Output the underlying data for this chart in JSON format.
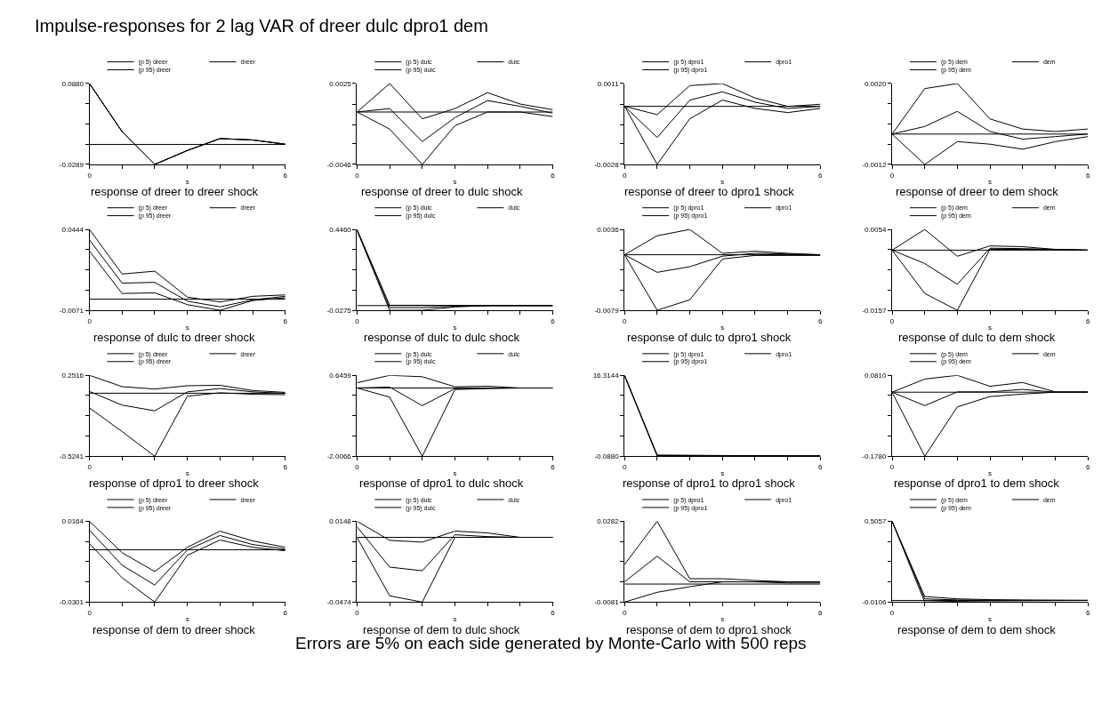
{
  "chart_data": [
    {
      "type": "other",
      "title": "Impulse-responses for 2 lag VAR of dreer dulc dpro1 dem",
      "annotations": [
        "Errors are 5% on each side generated by Monte-Carlo with 500 reps"
      ]
    },
    {
      "type": "line",
      "title": "response of dreer to dreer shock",
      "xlabel": "s",
      "legend": "top",
      "x": [
        0,
        1,
        2,
        3,
        4,
        5,
        6
      ],
      "xlim": [
        0,
        6
      ],
      "xticks": [
        0,
        {
          "value": 1,
          "label": null
        },
        {
          "value": 2,
          "label": null
        },
        {
          "value": 3,
          "label": null
        },
        {
          "value": 4,
          "label": null
        },
        {
          "value": 5,
          "label": null
        },
        6
      ],
      "ylim": [
        -0.0289,
        0.088
      ],
      "yticks": [
        -0.0289,
        {
          "value": 0.0003,
          "label": null
        },
        {
          "value": 0.0296,
          "label": null
        },
        {
          "value": 0.0588,
          "label": null
        },
        {
          "value": 0.088,
          "label": "0.0880"
        }
      ],
      "ref_lines": [
        {
          "axis": "y",
          "value": 0,
          "color": "#000000"
        }
      ],
      "series": [
        {
          "name": "(p 5) dreer",
          "color": "#000000",
          "values": [
            0.088,
            0.0184,
            -0.0289,
            -0.0088,
            0.0084,
            0.0064,
            0.0003
          ]
        },
        {
          "name": "dreer",
          "color": "#000000",
          "values": [
            0.088,
            0.0184,
            -0.0289,
            -0.0088,
            0.0084,
            0.0064,
            0.0003
          ]
        },
        {
          "name": "(p 95) dreer",
          "color": "#000000",
          "values": [
            0.088,
            0.0184,
            -0.0289,
            -0.0088,
            0.0084,
            0.0064,
            0.0003
          ]
        }
      ]
    },
    {
      "type": "line",
      "title": "response of dreer to dulc shock",
      "xlabel": "s",
      "legend": "top",
      "x": [
        0,
        1,
        2,
        3,
        4,
        5,
        6
      ],
      "xlim": [
        0,
        6
      ],
      "xticks": [
        0,
        {
          "value": 1,
          "label": null
        },
        {
          "value": 2,
          "label": null
        },
        {
          "value": 3,
          "label": null
        },
        {
          "value": 4,
          "label": null
        },
        {
          "value": 5,
          "label": null
        },
        6
      ],
      "ylim": [
        -0.0046,
        0.0025
      ],
      "yticks": [
        -0.0046,
        {
          "value": -0.0028,
          "label": null
        },
        {
          "value": -0.0011,
          "label": null
        },
        {
          "value": 0.0007,
          "label": null
        },
        0.0025
      ],
      "ref_lines": [
        {
          "axis": "y",
          "value": 0,
          "color": "#000000"
        }
      ],
      "series": [
        {
          "name": "(p 5) dulc",
          "color": "#000000",
          "values": [
            0,
            -0.0015,
            -0.0046,
            -0.0012,
            0.0,
            0.0,
            -0.0004
          ]
        },
        {
          "name": "dulc",
          "color": "#000000",
          "values": [
            0,
            0.0003,
            -0.0026,
            -0.0005,
            0.001,
            0.0005,
            -0.0001
          ]
        },
        {
          "name": "(p 95) dulc",
          "color": "#000000",
          "values": [
            0,
            0.0025,
            -0.0006,
            0.0003,
            0.0017,
            0.0007,
            0.0002
          ]
        }
      ]
    },
    {
      "type": "line",
      "title": "response of dreer to dpro1 shock",
      "xlabel": "s",
      "legend": "top",
      "x": [
        0,
        1,
        2,
        3,
        4,
        5,
        6
      ],
      "xlim": [
        0,
        6
      ],
      "xticks": [
        0,
        {
          "value": 1,
          "label": null
        },
        {
          "value": 2,
          "label": null
        },
        {
          "value": 3,
          "label": null
        },
        {
          "value": 4,
          "label": null
        },
        {
          "value": 5,
          "label": null
        },
        6
      ],
      "ylim": [
        -0.0028,
        0.0011
      ],
      "yticks": [
        -0.0028,
        {
          "value": -0.0018,
          "label": null
        },
        {
          "value": -0.0009,
          "label": null
        },
        {
          "value": 0.0001,
          "label": null
        },
        0.0011
      ],
      "ref_lines": [
        {
          "axis": "y",
          "value": 0,
          "color": "#000000"
        }
      ],
      "series": [
        {
          "name": "(p 5) dpro1",
          "color": "#000000",
          "values": [
            0,
            -0.0028,
            -0.0006,
            0.0003,
            -0.0001,
            -0.0003,
            -0.0001
          ]
        },
        {
          "name": "dpro1",
          "color": "#000000",
          "values": [
            0,
            -0.0015,
            0.0003,
            0.0007,
            0.0002,
            -0.0001,
            0.0
          ]
        },
        {
          "name": "(p 95) dpro1",
          "color": "#000000",
          "values": [
            0,
            -0.0004,
            0.001,
            0.0011,
            0.0004,
            0.0,
            0.0001
          ]
        }
      ]
    },
    {
      "type": "line",
      "title": "response of dreer to dem shock",
      "xlabel": "s",
      "legend": "top",
      "x": [
        0,
        1,
        2,
        3,
        4,
        5,
        6
      ],
      "xlim": [
        0,
        6
      ],
      "xticks": [
        0,
        {
          "value": 1,
          "label": null
        },
        {
          "value": 2,
          "label": null
        },
        {
          "value": 3,
          "label": null
        },
        {
          "value": 4,
          "label": null
        },
        {
          "value": 5,
          "label": null
        },
        6
      ],
      "ylim": [
        -0.0012,
        0.002
      ],
      "yticks": [
        -0.0012,
        {
          "value": -0.0004,
          "label": null
        },
        {
          "value": 0.0004,
          "label": null
        },
        {
          "value": 0.0012,
          "label": null
        },
        {
          "value": 0.002,
          "label": "0.0020"
        }
      ],
      "ref_lines": [
        {
          "axis": "y",
          "value": 0,
          "color": "#000000"
        }
      ],
      "series": [
        {
          "name": "(p 5) dem",
          "color": "#000000",
          "values": [
            0,
            -0.0012,
            -0.0003,
            -0.0004,
            -0.0006,
            -0.0003,
            -0.0001
          ]
        },
        {
          "name": "dem",
          "color": "#000000",
          "values": [
            0,
            0.0003,
            0.0009,
            0.0001,
            -0.0002,
            -0.0001,
            0.0
          ]
        },
        {
          "name": "(p 95) dem",
          "color": "#000000",
          "values": [
            0,
            0.0018,
            0.002,
            0.0006,
            0.0002,
            0.0001,
            0.0002
          ]
        }
      ]
    },
    {
      "type": "line",
      "title": "response of dulc to dreer shock",
      "xlabel": "s",
      "legend": "top",
      "x": [
        0,
        1,
        2,
        3,
        4,
        5,
        6
      ],
      "xlim": [
        0,
        6
      ],
      "xticks": [
        0,
        {
          "value": 1,
          "label": null
        },
        {
          "value": 2,
          "label": null
        },
        {
          "value": 3,
          "label": null
        },
        {
          "value": 4,
          "label": null
        },
        {
          "value": 5,
          "label": null
        },
        6
      ],
      "ylim": [
        -0.0071,
        0.0444
      ],
      "yticks": [
        -0.0071,
        {
          "value": 0.0058,
          "label": null
        },
        {
          "value": 0.0187,
          "label": null
        },
        {
          "value": 0.0315,
          "label": null
        },
        0.0444
      ],
      "ref_lines": [
        {
          "axis": "y",
          "value": 0,
          "color": "#000000"
        }
      ],
      "series": [
        {
          "name": "(p 5) dreer",
          "color": "#000000",
          "values": [
            0.0306,
            0.0036,
            0.004,
            -0.0035,
            -0.0071,
            -0.0009,
            0.0009
          ]
        },
        {
          "name": "dreer",
          "color": "#000000",
          "values": [
            0.0377,
            0.0102,
            0.0107,
            -0.0013,
            -0.0049,
            -0.0004,
            0.0018
          ]
        },
        {
          "name": "(p 95) dreer",
          "color": "#000000",
          "values": [
            0.0444,
            0.016,
            0.0178,
            0.0013,
            -0.0018,
            0.0018,
            0.0027
          ]
        }
      ]
    },
    {
      "type": "line",
      "title": "response of dulc to dulc shock",
      "xlabel": "s",
      "legend": "top",
      "x": [
        0,
        1,
        2,
        3,
        4,
        5,
        6
      ],
      "xlim": [
        0,
        6
      ],
      "xticks": [
        0,
        {
          "value": 1,
          "label": null
        },
        {
          "value": 2,
          "label": null
        },
        {
          "value": 3,
          "label": null
        },
        {
          "value": 4,
          "label": null
        },
        {
          "value": 5,
          "label": null
        },
        6
      ],
      "ylim": [
        -0.0275,
        0.446
      ],
      "yticks": [
        -0.0275,
        {
          "value": 0.0909,
          "label": null
        },
        {
          "value": 0.2093,
          "label": null
        },
        {
          "value": 0.3276,
          "label": null
        },
        {
          "value": 0.446,
          "label": "0.4460"
        }
      ],
      "ref_lines": [
        {
          "axis": "y",
          "value": 0,
          "color": "#000000"
        }
      ],
      "series": [
        {
          "name": "(p 5) dulc",
          "color": "#000000",
          "values": [
            0.44,
            -0.0275,
            -0.0275,
            -0.008,
            0,
            0,
            0
          ]
        },
        {
          "name": "dulc",
          "color": "#000000",
          "values": [
            0.443,
            -0.012,
            -0.012,
            -0.004,
            0,
            0,
            0
          ]
        },
        {
          "name": "(p 95) dulc",
          "color": "#000000",
          "values": [
            0.446,
            0.002,
            0.002,
            0.001,
            0,
            0,
            0
          ]
        }
      ]
    },
    {
      "type": "line",
      "title": "response of dulc to dpro1 shock",
      "xlabel": "s",
      "legend": "top",
      "x": [
        0,
        1,
        2,
        3,
        4,
        5,
        6
      ],
      "xlim": [
        0,
        6
      ],
      "xticks": [
        0,
        {
          "value": 1,
          "label": null
        },
        {
          "value": 2,
          "label": null
        },
        {
          "value": 3,
          "label": null
        },
        {
          "value": 4,
          "label": null
        },
        {
          "value": 5,
          "label": null
        },
        6
      ],
      "ylim": [
        -0.0079,
        0.0036
      ],
      "yticks": [
        -0.0079,
        {
          "value": -0.005,
          "label": null
        },
        {
          "value": -0.0022,
          "label": null
        },
        {
          "value": 0.0007,
          "label": null
        },
        0.0036
      ],
      "ref_lines": [
        {
          "axis": "y",
          "value": 0,
          "color": "#000000"
        }
      ],
      "series": [
        {
          "name": "(p 5) dpro1",
          "color": "#000000",
          "values": [
            0,
            -0.0079,
            -0.0064,
            -0.0006,
            -0.0001,
            -0.0001,
            -0.0001
          ]
        },
        {
          "name": "dpro1",
          "color": "#000000",
          "values": [
            0,
            -0.0025,
            -0.0017,
            -0.0002,
            0.0002,
            0.0001,
            0
          ]
        },
        {
          "name": "(p 95) dpro1",
          "color": "#000000",
          "values": [
            0,
            0.0027,
            0.0036,
            0.0002,
            0.0005,
            0.0002,
            0
          ]
        }
      ]
    },
    {
      "type": "line",
      "title": "response of dulc to dem shock",
      "xlabel": "s",
      "legend": "top",
      "x": [
        0,
        1,
        2,
        3,
        4,
        5,
        6
      ],
      "xlim": [
        0,
        6
      ],
      "xticks": [
        0,
        {
          "value": 1,
          "label": null
        },
        {
          "value": 2,
          "label": null
        },
        {
          "value": 3,
          "label": null
        },
        {
          "value": 4,
          "label": null
        },
        {
          "value": 5,
          "label": null
        },
        6
      ],
      "ylim": [
        -0.0157,
        0.0054
      ],
      "yticks": [
        -0.0157,
        {
          "value": -0.0104,
          "label": null
        },
        {
          "value": -0.0052,
          "label": null
        },
        {
          "value": 0.0001,
          "label": null
        },
        0.0054
      ],
      "ref_lines": [
        {
          "axis": "y",
          "value": 0,
          "color": "#000000"
        }
      ],
      "series": [
        {
          "name": "(p 5) dem",
          "color": "#000000",
          "values": [
            0,
            -0.0113,
            -0.0157,
            0.0002,
            0.0002,
            0.0002,
            0
          ]
        },
        {
          "name": "dem",
          "color": "#000000",
          "values": [
            0,
            -0.0035,
            -0.0089,
            0.0005,
            0.0004,
            0.0002,
            0
          ]
        },
        {
          "name": "(p 95) dem",
          "color": "#000000",
          "values": [
            0,
            0.0054,
            -0.0016,
            0.0011,
            0.0009,
            0.0002,
            0
          ]
        }
      ]
    },
    {
      "type": "line",
      "title": "response of dpro1 to dreer shock",
      "xlabel": "s",
      "legend": "top",
      "x": [
        0,
        1,
        2,
        3,
        4,
        5,
        6
      ],
      "xlim": [
        0,
        6
      ],
      "xticks": [
        0,
        {
          "value": 1,
          "label": null
        },
        {
          "value": 2,
          "label": null
        },
        {
          "value": 3,
          "label": null
        },
        {
          "value": 4,
          "label": null
        },
        {
          "value": 5,
          "label": null
        },
        6
      ],
      "ylim": [
        -0.5241,
        0.2516
      ],
      "yticks": [
        -0.5241,
        {
          "value": -0.3302,
          "label": null
        },
        {
          "value": -0.1363,
          "label": null
        },
        {
          "value": 0.0577,
          "label": null
        },
        0.2516
      ],
      "ref_lines": [
        {
          "axis": "y",
          "value": 0.08,
          "color": "#000000"
        }
      ],
      "series": [
        {
          "name": "(p 5) dreer",
          "color": "#000000",
          "values": [
            -0.061,
            -0.288,
            -0.5241,
            0.052,
            0.084,
            0.07,
            0.066
          ]
        },
        {
          "name": "dreer",
          "color": "#000000",
          "values": [
            0.097,
            -0.034,
            -0.089,
            0.093,
            0.125,
            0.093,
            0.079
          ]
        },
        {
          "name": "(p 95) dreer",
          "color": "#000000",
          "values": [
            0.2516,
            0.143,
            0.12,
            0.152,
            0.156,
            0.106,
            0.088
          ]
        }
      ]
    },
    {
      "type": "line",
      "title": "response of dpro1 to dulc shock",
      "xlabel": "s",
      "legend": "top",
      "x": [
        0,
        1,
        2,
        3,
        4,
        5,
        6
      ],
      "xlim": [
        0,
        6
      ],
      "xticks": [
        0,
        {
          "value": 1,
          "label": null
        },
        {
          "value": 2,
          "label": null
        },
        {
          "value": 3,
          "label": null
        },
        {
          "value": 4,
          "label": null
        },
        {
          "value": 5,
          "label": null
        },
        6
      ],
      "ylim": [
        -2.0066,
        0.6459
      ],
      "yticks": [
        -2.0066,
        {
          "value": -1.3435,
          "label": null
        },
        {
          "value": -0.6803,
          "label": null
        },
        {
          "value": -0.0172,
          "label": null
        },
        0.6459
      ],
      "ref_lines": [
        {
          "axis": "y",
          "value": 0.23,
          "color": "#000000"
        }
      ],
      "series": [
        {
          "name": "(p 5) dulc",
          "color": "#000000",
          "values": [
            0.23,
            -0.07,
            -2.0066,
            0.18,
            0.21,
            0.23,
            0.23
          ]
        },
        {
          "name": "dulc",
          "color": "#000000",
          "values": [
            0.23,
            0.26,
            -0.35,
            0.21,
            0.23,
            0.23,
            0.23
          ]
        },
        {
          "name": "(p 95) dulc",
          "color": "#000000",
          "values": [
            0.4,
            0.6459,
            0.6,
            0.27,
            0.29,
            0.23,
            0.23
          ]
        }
      ]
    },
    {
      "type": "line",
      "title": "response of dpro1 to dpro1 shock",
      "xlabel": "s",
      "legend": "top",
      "x": [
        0,
        1,
        2,
        3,
        4,
        5,
        6
      ],
      "xlim": [
        0,
        6
      ],
      "xticks": [
        0,
        {
          "value": 1,
          "label": null
        },
        {
          "value": 2,
          "label": null
        },
        {
          "value": 3,
          "label": null
        },
        {
          "value": 4,
          "label": null
        },
        {
          "value": 5,
          "label": null
        },
        6
      ],
      "ylim": [
        -0.088,
        16.3144
      ],
      "yticks": [
        {
          "value": -0.088,
          "label": "-0.0880"
        },
        {
          "value": 4.0126,
          "label": null
        },
        {
          "value": 8.1132,
          "label": null
        },
        {
          "value": 12.2138,
          "label": null
        },
        16.3144
      ],
      "series": [
        {
          "name": "(p 5) dpro1",
          "color": "#000000",
          "values": [
            16.2,
            -0.05,
            -0.07,
            -0.08,
            -0.088,
            -0.088,
            -0.088
          ]
        },
        {
          "name": "dpro1",
          "color": "#000000",
          "values": [
            16.3144,
            0.05,
            0.03,
            0.01,
            0,
            0,
            0
          ]
        },
        {
          "name": "(p 95) dpro1",
          "color": "#000000",
          "values": [
            16.3144,
            0.15,
            0.1,
            0.05,
            0.03,
            0.02,
            0.01
          ]
        }
      ]
    },
    {
      "type": "line",
      "title": "response of dpro1 to dem shock",
      "xlabel": "s",
      "legend": "top",
      "x": [
        0,
        1,
        2,
        3,
        4,
        5,
        6
      ],
      "xlim": [
        0,
        6
      ],
      "xticks": [
        0,
        {
          "value": 1,
          "label": null
        },
        {
          "value": 2,
          "label": null
        },
        {
          "value": 3,
          "label": null
        },
        {
          "value": 4,
          "label": null
        },
        {
          "value": 5,
          "label": null
        },
        6
      ],
      "ylim": [
        -0.178,
        0.081
      ],
      "yticks": [
        {
          "value": -0.178,
          "label": "-0.1780"
        },
        {
          "value": -0.1133,
          "label": null
        },
        {
          "value": -0.0485,
          "label": null
        },
        {
          "value": 0.0163,
          "label": null
        },
        {
          "value": 0.081,
          "label": "0.0810"
        }
      ],
      "ref_lines": [
        {
          "axis": "y",
          "value": 0.027,
          "color": "#000000"
        }
      ],
      "series": [
        {
          "name": "(p 5) dem",
          "color": "#000000",
          "values": [
            0.027,
            -0.178,
            -0.02,
            0.013,
            0.021,
            0.027,
            0.027
          ]
        },
        {
          "name": "dem",
          "color": "#000000",
          "values": [
            0.027,
            -0.016,
            0.028,
            0.028,
            0.036,
            0.027,
            0.027
          ]
        },
        {
          "name": "(p 95) dem",
          "color": "#000000",
          "values": [
            0.027,
            0.069,
            0.081,
            0.046,
            0.058,
            0.028,
            0.028
          ]
        }
      ]
    },
    {
      "type": "line",
      "title": "response of dem to dreer shock",
      "xlabel": "s",
      "legend": "top",
      "x": [
        0,
        1,
        2,
        3,
        4,
        5,
        6
      ],
      "xlim": [
        0,
        6
      ],
      "xticks": [
        0,
        {
          "value": 1,
          "label": null
        },
        {
          "value": 2,
          "label": null
        },
        {
          "value": 3,
          "label": null
        },
        {
          "value": 4,
          "label": null
        },
        {
          "value": 5,
          "label": null
        },
        6
      ],
      "ylim": [
        -0.0301,
        0.0164
      ],
      "yticks": [
        -0.0301,
        {
          "value": -0.0185,
          "label": null
        },
        {
          "value": -0.0068,
          "label": null
        },
        {
          "value": 0.0048,
          "label": null
        },
        0.0164
      ],
      "ref_lines": [
        {
          "axis": "y",
          "value": 0,
          "color": "#000000"
        }
      ],
      "series": [
        {
          "name": "(p 5) dreer",
          "color": "#000000",
          "values": [
            0.0035,
            -0.0161,
            -0.0301,
            -0.0032,
            0.0056,
            0.0014,
            -0.0006
          ]
        },
        {
          "name": "dreer",
          "color": "#000000",
          "values": [
            0.0113,
            -0.0089,
            -0.0203,
            -0.0001,
            0.0082,
            0.003,
            0.0004
          ]
        },
        {
          "name": "(p 95) dreer",
          "color": "#000000",
          "values": [
            0.0164,
            -0.0017,
            -0.0125,
            0.0014,
            0.0107,
            0.0051,
            0.0014
          ]
        }
      ]
    },
    {
      "type": "line",
      "title": "response of dem to dulc shock",
      "xlabel": "s",
      "legend": "top",
      "x": [
        0,
        1,
        2,
        3,
        4,
        5,
        6
      ],
      "xlim": [
        0,
        6
      ],
      "xticks": [
        0,
        {
          "value": 1,
          "label": null
        },
        {
          "value": 2,
          "label": null
        },
        {
          "value": 3,
          "label": null
        },
        {
          "value": 4,
          "label": null
        },
        {
          "value": 5,
          "label": null
        },
        6
      ],
      "ylim": [
        -0.0474,
        0.0148
      ],
      "yticks": [
        -0.0474,
        {
          "value": -0.0319,
          "label": null
        },
        {
          "value": -0.0163,
          "label": null
        },
        {
          "value": -0.0008,
          "label": null
        },
        0.0148
      ],
      "ref_lines": [
        {
          "axis": "y",
          "value": 0.0024,
          "color": "#000000"
        }
      ],
      "series": [
        {
          "name": "(p 5) dulc",
          "color": "#000000",
          "values": [
            0.0024,
            -0.0426,
            -0.0474,
            0.0024,
            0.0024,
            0.0024,
            0.0024
          ]
        },
        {
          "name": "dulc",
          "color": "#000000",
          "values": [
            0.0106,
            -0.0205,
            -0.0233,
            0.0044,
            0.003,
            0.0024,
            0.0024
          ]
        },
        {
          "name": "(p 95) dulc",
          "color": "#000000",
          "values": [
            0.0148,
            0.0001,
            -0.0013,
            0.0072,
            0.0058,
            0.0024,
            0.0024
          ]
        }
      ]
    },
    {
      "type": "line",
      "title": "response of dem to dpro1 shock",
      "xlabel": "s",
      "legend": "top",
      "x": [
        0,
        1,
        2,
        3,
        4,
        5,
        6
      ],
      "xlim": [
        0,
        6
      ],
      "xticks": [
        0,
        {
          "value": 1,
          "label": null
        },
        {
          "value": 2,
          "label": null
        },
        {
          "value": 3,
          "label": null
        },
        {
          "value": 4,
          "label": null
        },
        {
          "value": 5,
          "label": null
        },
        6
      ],
      "ylim": [
        -0.0081,
        0.0282
      ],
      "yticks": [
        -0.0081,
        {
          "value": 0.001,
          "label": null
        },
        {
          "value": 0.0101,
          "label": null
        },
        {
          "value": 0.0191,
          "label": null
        },
        0.0282
      ],
      "ref_lines": [
        {
          "axis": "y",
          "value": 0,
          "color": "#000000"
        }
      ],
      "series": [
        {
          "name": "(p 5) dpro1",
          "color": "#000000",
          "values": [
            -0.0081,
            -0.0037,
            -0.0012,
            0.001,
            0.001,
            0.0005,
            0.0005
          ]
        },
        {
          "name": "dpro1",
          "color": "#000000",
          "values": [
            0.001,
            0.0125,
            0.001,
            0.001,
            0.001,
            0.001,
            0.001
          ]
        },
        {
          "name": "(p 95) dpro1",
          "color": "#000000",
          "values": [
            0.0088,
            0.0282,
            0.0024,
            0.0024,
            0.0016,
            0.001,
            0.001
          ]
        }
      ]
    },
    {
      "type": "line",
      "title": "response of dem to dem shock",
      "xlabel": "s",
      "legend": "top",
      "x": [
        0,
        1,
        2,
        3,
        4,
        5,
        6
      ],
      "xlim": [
        0,
        6
      ],
      "xticks": [
        0,
        {
          "value": 1,
          "label": null
        },
        {
          "value": 2,
          "label": null
        },
        {
          "value": 3,
          "label": null
        },
        {
          "value": 4,
          "label": null
        },
        {
          "value": 5,
          "label": null
        },
        6
      ],
      "ylim": [
        -0.0106,
        0.5057
      ],
      "yticks": [
        -0.0106,
        {
          "value": 0.1185,
          "label": null
        },
        {
          "value": 0.2475,
          "label": null
        },
        {
          "value": 0.3766,
          "label": null
        },
        0.5057
      ],
      "ref_lines": [
        {
          "axis": "y",
          "value": 0,
          "color": "#000000"
        }
      ],
      "series": [
        {
          "name": "(p 5) dem",
          "color": "#000000",
          "values": [
            0.5057,
            -0.0106,
            -0.005,
            -0.003,
            -0.002,
            -0.001,
            0
          ]
        },
        {
          "name": "dem",
          "color": "#000000",
          "values": [
            0.5057,
            0.01,
            0.003,
            0.001,
            0,
            0,
            0
          ]
        },
        {
          "name": "(p 95) dem",
          "color": "#000000",
          "values": [
            0.5057,
            0.025,
            0.01,
            0.005,
            0.003,
            0.002,
            0.001
          ]
        }
      ]
    }
  ]
}
